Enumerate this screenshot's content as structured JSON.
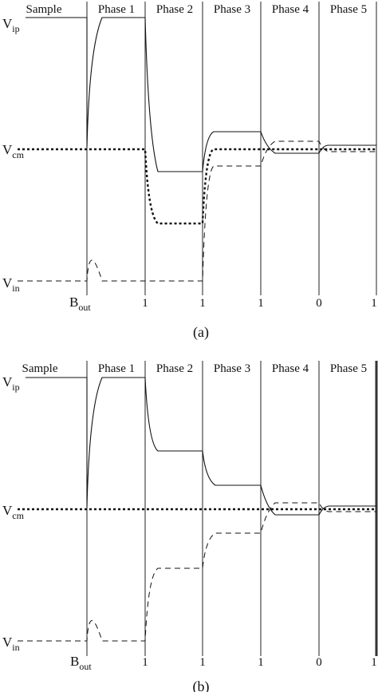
{
  "panels": [
    {
      "id": "a",
      "caption": "(a)",
      "phases": [
        "Sample",
        "Phase 1",
        "Phase 2",
        "Phase 3",
        "Phase 4",
        "Phase 5"
      ],
      "labels": {
        "vip": "V",
        "vip_sub": "ip",
        "vcm": "V",
        "vcm_sub": "cm",
        "vin": "V",
        "vin_sub": "in"
      },
      "bout": {
        "main": "B",
        "sub": "out"
      },
      "bits": [
        "1",
        "1",
        "1",
        "0",
        "1"
      ]
    },
    {
      "id": "b",
      "caption": "(b)",
      "phases": [
        "Sample",
        "Phase 1",
        "Phase 2",
        "Phase 3",
        "Phase 4",
        "Phase 5"
      ],
      "labels": {
        "vip": "V",
        "vip_sub": "ip",
        "vcm": "V",
        "vcm_sub": "cm",
        "vin": "V",
        "vin_sub": "in"
      },
      "bout": {
        "main": "B",
        "sub": "out"
      },
      "bits": [
        "1",
        "1",
        "1",
        "0",
        "1"
      ]
    }
  ]
}
